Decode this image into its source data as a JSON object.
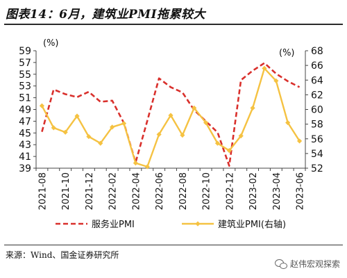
{
  "header": {
    "title": "图表14：6月，建筑业PMI拖累较大"
  },
  "footer": {
    "source": "来源：Wind、国金证券研究所",
    "watermark": "赵伟宏观探索"
  },
  "chart_data": {
    "type": "line",
    "x": [
      "2021-08",
      "2021-09",
      "2021-10",
      "2021-11",
      "2021-12",
      "2022-01",
      "2022-02",
      "2022-03",
      "2022-04",
      "2022-05",
      "2022-06",
      "2022-07",
      "2022-08",
      "2022-09",
      "2022-10",
      "2022-11",
      "2022-12",
      "2023-01",
      "2023-02",
      "2023-03",
      "2023-04",
      "2023-05",
      "2023-06"
    ],
    "x_tick_labels": [
      "2021-08",
      "2021-10",
      "2021-12",
      "2022-02",
      "2022-04",
      "2022-06",
      "2022-08",
      "2022-10",
      "2022-12",
      "2023-02",
      "2023-04",
      "2023-06"
    ],
    "y_left": {
      "unit": "(%)",
      "range": [
        39,
        59
      ],
      "ticks": [
        39,
        41,
        43,
        45,
        47,
        49,
        51,
        53,
        55,
        57,
        59
      ]
    },
    "y_right": {
      "unit": "(%)",
      "range": [
        52,
        68
      ],
      "ticks": [
        52,
        54,
        56,
        58,
        60,
        62,
        64,
        66,
        68
      ]
    },
    "series": [
      {
        "name": "服务业PMI",
        "axis": "left",
        "color": "#d9302c",
        "style": "dashed",
        "values": [
          45.2,
          52.4,
          51.6,
          51.1,
          52.0,
          50.3,
          50.5,
          46.7,
          40.0,
          47.1,
          54.3,
          52.8,
          51.9,
          48.9,
          47.0,
          45.1,
          39.4,
          54.0,
          55.6,
          56.9,
          55.1,
          53.8,
          52.8
        ]
      },
      {
        "name": "建筑业PMI(右轴)",
        "axis": "right",
        "color": "#f5c242",
        "style": "solid",
        "values": [
          60.5,
          57.5,
          56.9,
          59.1,
          56.3,
          55.4,
          57.6,
          58.1,
          52.7,
          52.2,
          56.6,
          59.2,
          56.5,
          60.2,
          58.2,
          55.4,
          54.4,
          56.4,
          60.2,
          65.6,
          63.9,
          58.2,
          55.7
        ]
      }
    ],
    "grid": false,
    "legend": "bottom"
  }
}
